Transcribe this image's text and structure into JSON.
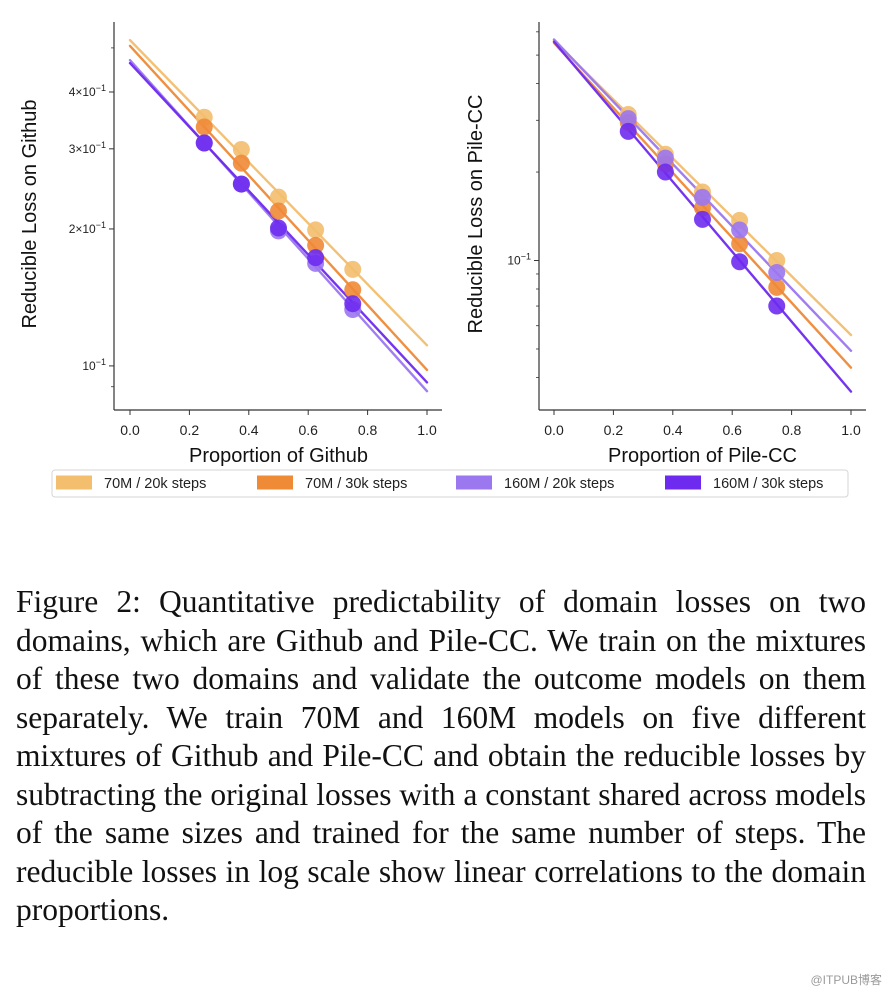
{
  "series_styles": [
    {
      "name": "70M / 20k steps",
      "color": "#F3BE6E"
    },
    {
      "name": "70M / 30k steps",
      "color": "#EF8A37"
    },
    {
      "name": "160M / 20k steps",
      "color": "#9B77F0"
    },
    {
      "name": "160M / 30k steps",
      "color": "#6E2BEF"
    }
  ],
  "chart_data": [
    {
      "type": "scatter",
      "title": "",
      "xlabel": "Proportion of Github",
      "ylabel": "Reducible Loss on Github",
      "yscale": "log",
      "xlim": [
        -0.05,
        1.05
      ],
      "ylim": [
        0.08,
        0.57
      ],
      "xticks": [
        0.0,
        0.2,
        0.4,
        0.6,
        0.8,
        1.0
      ],
      "xtick_labels": [
        "0.0",
        "0.2",
        "0.4",
        "0.6",
        "0.8",
        "1.0"
      ],
      "yticks": [
        0.1,
        0.2,
        0.3,
        0.4
      ],
      "ytick_labels": [
        {
          "base": "10",
          "exp": "−1",
          "coef": ""
        },
        {
          "base": "10",
          "exp": "−1",
          "coef": "2×"
        },
        {
          "base": "10",
          "exp": "−1",
          "coef": "3×"
        },
        {
          "base": "10",
          "exp": "−1",
          "coef": "4×"
        }
      ],
      "minor_yticks": [
        0.09,
        0.5
      ],
      "grid": false,
      "x": [
        0.25,
        0.375,
        0.5,
        0.625,
        0.75
      ],
      "series": [
        {
          "name": "70M / 20k steps",
          "values": [
            0.352,
            0.299,
            0.235,
            0.199,
            0.163
          ],
          "fit_line": {
            "x": [
              0.0,
              1.0
            ],
            "y": [
              0.52,
              0.111
            ]
          }
        },
        {
          "name": "70M / 30k steps",
          "values": [
            0.335,
            0.279,
            0.219,
            0.184,
            0.147
          ],
          "fit_line": {
            "x": [
              0.0,
              1.0
            ],
            "y": [
              0.505,
              0.098
            ]
          }
        },
        {
          "name": "160M / 20k steps",
          "values": [
            0.309,
            0.251,
            0.198,
            0.168,
            0.133
          ],
          "fit_line": {
            "x": [
              0.0,
              1.0
            ],
            "y": [
              0.47,
              0.088
            ]
          }
        },
        {
          "name": "160M / 30k steps",
          "values": [
            0.309,
            0.251,
            0.201,
            0.173,
            0.137
          ],
          "fit_line": {
            "x": [
              0.0,
              1.0
            ],
            "y": [
              0.463,
              0.092
            ]
          }
        }
      ]
    },
    {
      "type": "scatter",
      "title": "",
      "xlabel": "Proportion of Pile-CC",
      "ylabel": "Reducible Loss on Pile-CC",
      "yscale": "log",
      "xlim": [
        -0.05,
        1.05
      ],
      "ylim": [
        0.031,
        0.648
      ],
      "xticks": [
        0.0,
        0.2,
        0.4,
        0.6,
        0.8,
        1.0
      ],
      "xtick_labels": [
        "0.0",
        "0.2",
        "0.4",
        "0.6",
        "0.8",
        "1.0"
      ],
      "yticks": [
        0.1
      ],
      "ytick_labels": [
        {
          "base": "10",
          "exp": "−1",
          "coef": ""
        }
      ],
      "minor_yticks": [
        0.04,
        0.05,
        0.06,
        0.07,
        0.08,
        0.09,
        0.2,
        0.3,
        0.4,
        0.5,
        0.6
      ],
      "grid": false,
      "x": [
        0.25,
        0.375,
        0.5,
        0.625,
        0.75
      ],
      "series": [
        {
          "name": "70M / 20k steps",
          "values": [
            0.314,
            0.23,
            0.171,
            0.137,
            0.1
          ],
          "fit_line": {
            "x": [
              0.0,
              1.0
            ],
            "y": [
              0.56,
              0.0558
            ]
          }
        },
        {
          "name": "70M / 30k steps",
          "values": [
            0.295,
            0.213,
            0.151,
            0.114,
            0.081
          ],
          "fit_line": {
            "x": [
              0.0,
              1.0
            ],
            "y": [
              0.55,
              0.0432
            ]
          }
        },
        {
          "name": "160M / 20k steps",
          "values": [
            0.304,
            0.223,
            0.164,
            0.127,
            0.091
          ],
          "fit_line": {
            "x": [
              0.0,
              1.0
            ],
            "y": [
              0.565,
              0.0493
            ]
          }
        },
        {
          "name": "160M / 30k steps",
          "values": [
            0.275,
            0.2,
            0.138,
            0.099,
            0.07
          ],
          "fit_line": {
            "x": [
              0.0,
              1.0
            ],
            "y": [
              0.555,
              0.0358
            ]
          }
        }
      ]
    }
  ],
  "legend": {
    "placement": "bottom-center",
    "items": [
      "70M / 20k steps",
      "70M / 30k steps",
      "160M / 20k steps",
      "160M / 30k steps"
    ]
  },
  "caption": {
    "text": "Figure 2: Quantitative predictability of domain losses on two domains, which are Github and Pile-CC. We train on the mixtures of these two domains and vali­date the outcome models on them separately. We train 70M and 160M models on five different mixtures of Github and Pile-CC and obtain the reducible losses by subtracting the original losses with a constant shared across models of the same sizes and trained for the same number of steps. The reducible losses in log scale show linear correlations to the domain proportions."
  },
  "watermark": "@ITPUB博客"
}
